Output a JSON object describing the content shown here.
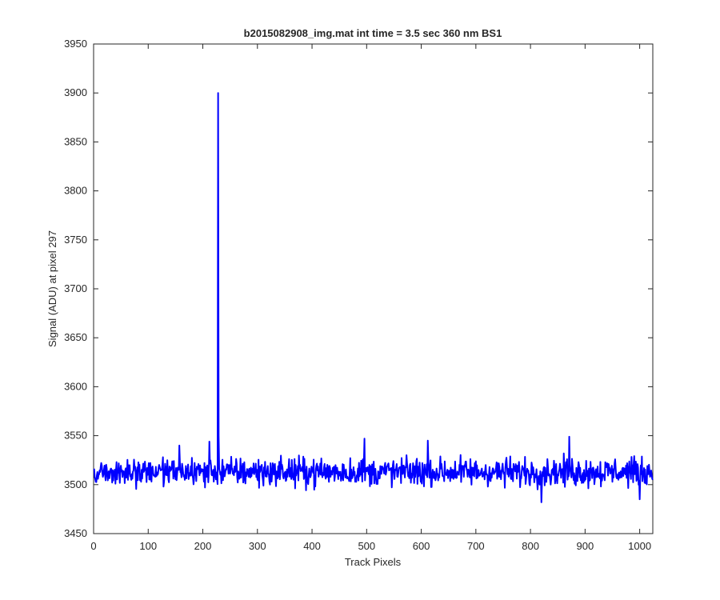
{
  "chart_data": {
    "type": "line",
    "title": "b2015082908_img.mat int time = 3.5 sec  360 nm BS1",
    "xlabel": "Track Pixels",
    "ylabel": "Signal (ADU) at pixel 297",
    "xlim": [
      0,
      1024
    ],
    "ylim": [
      3450,
      3950
    ],
    "xticks": [
      0,
      100,
      200,
      300,
      400,
      500,
      600,
      700,
      800,
      900,
      1000
    ],
    "yticks": [
      3450,
      3500,
      3550,
      3600,
      3650,
      3700,
      3750,
      3800,
      3850,
      3900,
      3950
    ],
    "grid": false,
    "legend": "none",
    "series": [
      {
        "color": "#0000ff",
        "x_start": 1,
        "x_step": 1,
        "baseline_mean": 3513,
        "noise_amplitude": 14,
        "values_note_points": [
          {
            "x": 157,
            "y": 3540
          },
          {
            "x": 212,
            "y": 3544
          },
          {
            "x": 228,
            "y": 3900
          },
          {
            "x": 229,
            "y": 3550
          },
          {
            "x": 496,
            "y": 3547
          },
          {
            "x": 612,
            "y": 3545
          },
          {
            "x": 820,
            "y": 3482
          },
          {
            "x": 871,
            "y": 3549
          },
          {
            "x": 1000,
            "y": 3485
          }
        ]
      }
    ]
  }
}
